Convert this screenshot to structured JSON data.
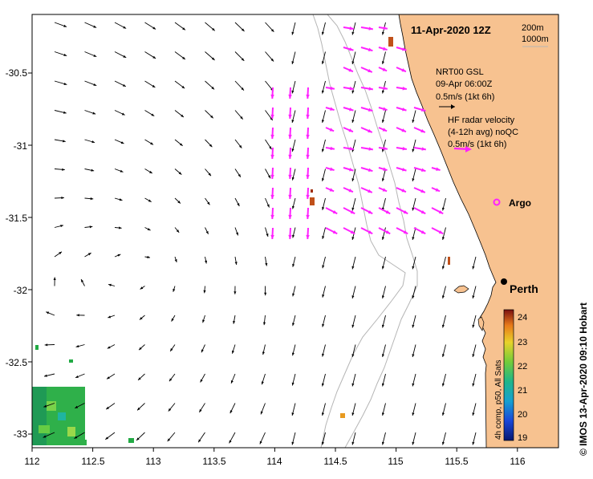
{
  "map": {
    "date_label": "11-Apr-2020 12Z",
    "depth_labels": [
      "200m",
      "1000m"
    ],
    "x_ticks": [
      "112",
      "112.5",
      "113",
      "113.5",
      "114",
      "114.5",
      "115",
      "115.5",
      "116"
    ],
    "y_ticks": [
      "-30.5",
      "-31",
      "-31.5",
      "-32",
      "-32.5",
      "-33"
    ],
    "gsl_legend": [
      "NRT00 GSL",
      "09-Apr 06:00Z",
      "0.5m/s (1kt 6h)"
    ],
    "hf_legend": [
      "HF radar velocity",
      "(4-12h avg) noQC",
      "0.5m/s (1kt 6h)"
    ],
    "argo_label": "Argo",
    "city_label": "Perth",
    "colorbar_ticks": [
      "24",
      "23",
      "22",
      "21",
      "20",
      "19"
    ],
    "colorbar_label": "4h comp, p50, All Sats",
    "credit": "© IMOS 13-Apr-2020 09:10 Hobart",
    "colors": {
      "land": "#f7c290",
      "ocean": "#ffffff",
      "hf_arrow": "#ff22ff",
      "gsl_arrow": "#000000",
      "isobath": "#b5b5b5"
    },
    "icons": {
      "argo": "magenta-ring-marker",
      "city": "black-dot-marker"
    }
  }
}
